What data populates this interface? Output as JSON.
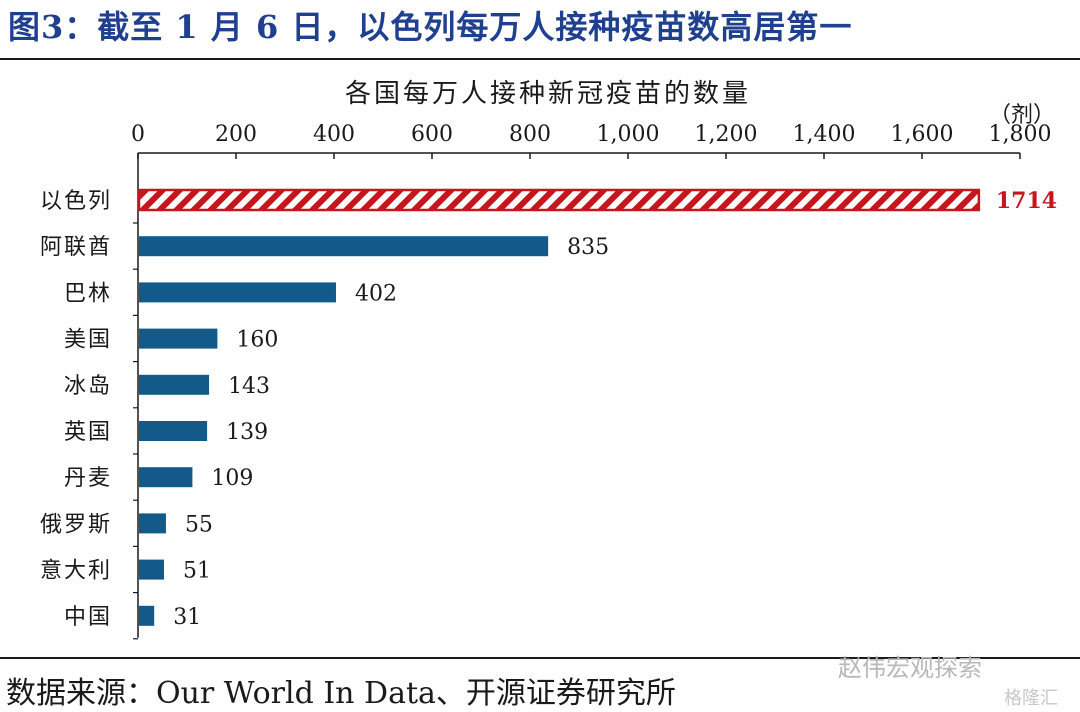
{
  "figure_title": "图3：截至 1 月 6 日，以色列每万人接种疫苗数高居第一",
  "source": "数据来源：Our World In Data、开源证券研究所",
  "watermark": "赵伟宏观探索",
  "watermark2": "格隆汇",
  "colors": {
    "bar": "#135a8a",
    "highlight": "#c4161c",
    "title": "#1f3f8f"
  },
  "chart_data": {
    "type": "bar",
    "orientation": "horizontal",
    "title": "各国每万人接种新冠疫苗的数量",
    "unit": "（剂）",
    "xlim": [
      0,
      1800
    ],
    "ticks": [
      0,
      200,
      400,
      600,
      800,
      1000,
      1200,
      1400,
      1600,
      1800
    ],
    "tick_labels": [
      "0",
      "200",
      "400",
      "600",
      "800",
      "1,000",
      "1,200",
      "1,400",
      "1,600",
      "1,800"
    ],
    "categories": [
      "以色列",
      "阿联酋",
      "巴林",
      "美国",
      "冰岛",
      "英国",
      "丹麦",
      "俄罗斯",
      "意大利",
      "中国"
    ],
    "values": [
      1714,
      835,
      402,
      160,
      143,
      139,
      109,
      55,
      51,
      31
    ],
    "value_labels": [
      "1714",
      "835",
      "402",
      "160",
      "143",
      "139",
      "109",
      "55",
      "51",
      "31"
    ],
    "highlight": "以色列",
    "grid": false,
    "legend": "none"
  }
}
